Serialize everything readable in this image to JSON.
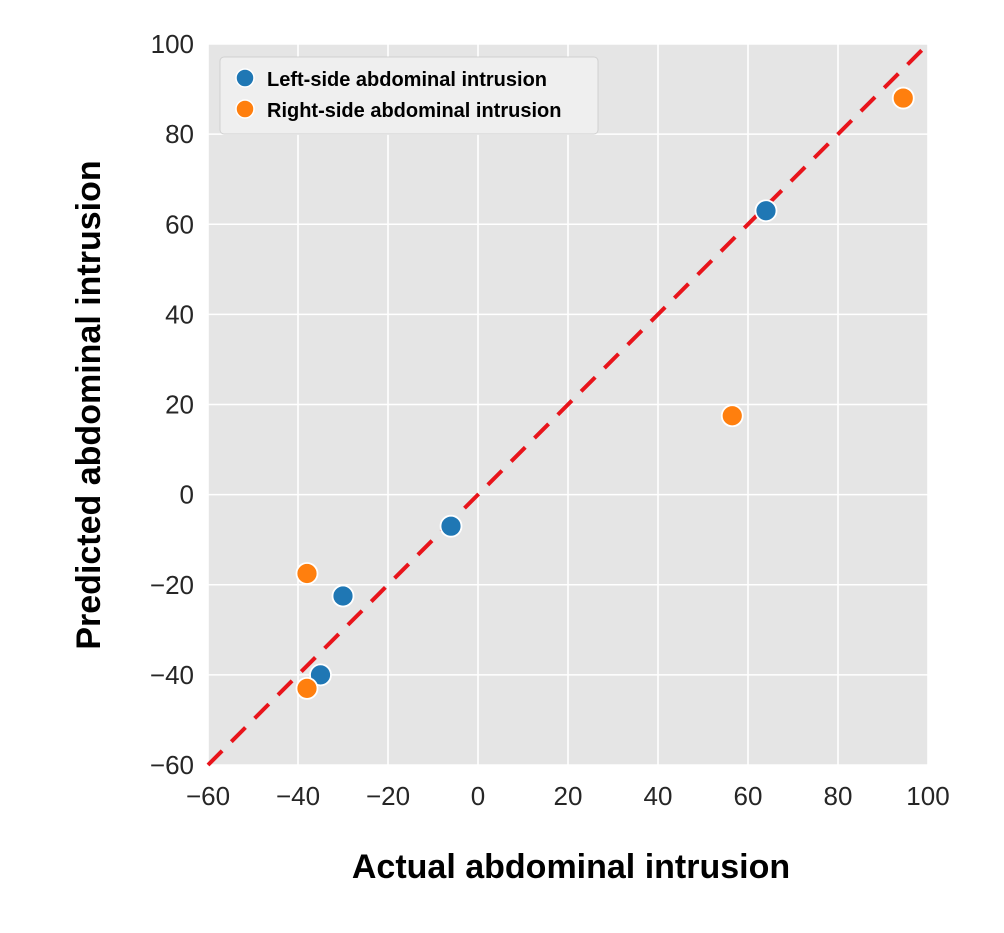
{
  "chart_data": {
    "type": "scatter",
    "title": "",
    "xlabel": "Actual abdominal intrusion",
    "ylabel": "Predicted abdominal intrusion",
    "xlim": [
      -60,
      100
    ],
    "ylim": [
      -60,
      100
    ],
    "xticks": [
      -60,
      -40,
      -20,
      0,
      20,
      40,
      60,
      80,
      100
    ],
    "yticks": [
      -60,
      -40,
      -20,
      0,
      20,
      40,
      60,
      80,
      100
    ],
    "xtick_labels": [
      "−60",
      "−40",
      "−20",
      "0",
      "20",
      "40",
      "60",
      "80",
      "100"
    ],
    "ytick_labels": [
      "−60",
      "−40",
      "−20",
      "0",
      "20",
      "40",
      "60",
      "80",
      "100"
    ],
    "grid": true,
    "legend_position": "top-left",
    "reference_line": {
      "style": "dashed",
      "color": "#e8141b",
      "from": [
        -60,
        -60
      ],
      "to": [
        100,
        100
      ]
    },
    "series": [
      {
        "name": "Left-side abdominal intrusion",
        "color": "#1f77b4",
        "points": [
          [
            64,
            63
          ],
          [
            -30,
            -22.5
          ],
          [
            -6,
            -7
          ],
          [
            -35,
            -40
          ]
        ]
      },
      {
        "name": "Right-side abdominal intrusion",
        "color": "#ff7f0e",
        "points": [
          [
            94.5,
            88
          ],
          [
            56.5,
            17.5
          ],
          [
            -38,
            -17.5
          ],
          [
            -38,
            -43
          ]
        ]
      }
    ]
  }
}
